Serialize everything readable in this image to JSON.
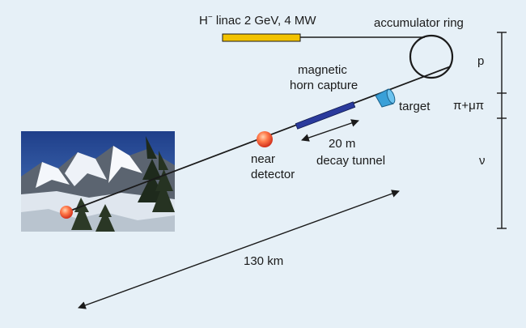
{
  "labels": {
    "linac_main": "H",
    "linac_sup": "−",
    "linac_rest": " linac 2 GeV, 4 MW",
    "accumulator": "accumulator ring",
    "magnetic": "magnetic",
    "horn_capture": "horn capture",
    "target": "target",
    "near": "near",
    "detector": "detector",
    "distance_20m": "20 m",
    "decay_tunnel": "decay tunnel",
    "distance_130km": "130 km",
    "scale_p": "p",
    "scale_pimu": "π+μπ",
    "scale_nu": "ν"
  },
  "colors": {
    "background": "#e6f0f7",
    "linac": "#f2c200",
    "horn": "#2a3a9c",
    "target": "#3aa0d8",
    "detector": "#e84a2e",
    "beam": "#1a1a1a"
  }
}
